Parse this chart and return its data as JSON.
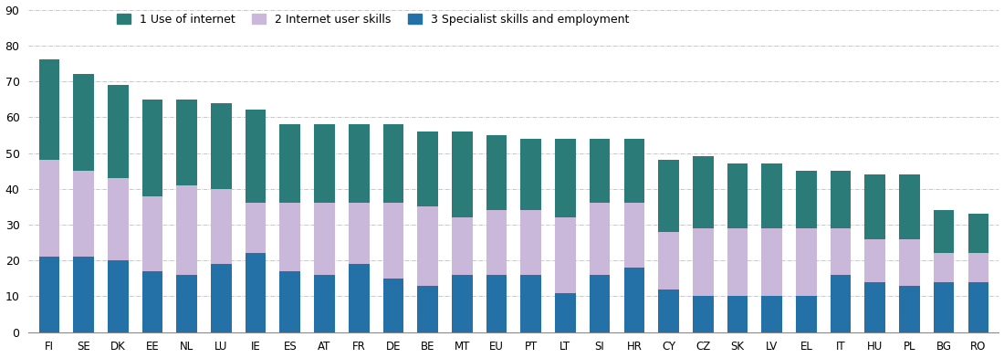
{
  "categories": [
    "FI",
    "SE",
    "DK",
    "EE",
    "NL",
    "LU",
    "IE",
    "ES",
    "AT",
    "FR",
    "DE",
    "BE",
    "MT",
    "EU",
    "PT",
    "LT",
    "SI",
    "HR",
    "CY",
    "CZ",
    "SK",
    "LV",
    "EL",
    "IT",
    "HU",
    "PL",
    "BG",
    "RO"
  ],
  "specialist": [
    21,
    21,
    20,
    17,
    16,
    19,
    22,
    17,
    16,
    19,
    15,
    13,
    16,
    16,
    16,
    11,
    16,
    18,
    12,
    10,
    10,
    10,
    10,
    16,
    14,
    13,
    14,
    14
  ],
  "internet_user": [
    27,
    24,
    23,
    21,
    25,
    21,
    14,
    19,
    20,
    17,
    21,
    22,
    16,
    18,
    18,
    21,
    20,
    18,
    16,
    19,
    19,
    19,
    19,
    13,
    12,
    13,
    8,
    8
  ],
  "use_of_internet": [
    28,
    27,
    26,
    27,
    24,
    24,
    26,
    22,
    22,
    22,
    22,
    21,
    24,
    21,
    20,
    22,
    18,
    18,
    20,
    20,
    18,
    18,
    16,
    16,
    18,
    18,
    12,
    11
  ],
  "color_specialist": "#2471a8",
  "color_internet_user": "#c9b8d9",
  "color_use_of_internet": "#2b7b78",
  "legend_labels": [
    "1 Use of internet",
    "2 Internet user skills",
    "3 Specialist skills and employment"
  ],
  "ylim": [
    0,
    90
  ],
  "yticks": [
    0,
    10,
    20,
    30,
    40,
    50,
    60,
    70,
    80,
    90
  ],
  "background_color": "#ffffff",
  "grid_color": "#b0b0b0"
}
